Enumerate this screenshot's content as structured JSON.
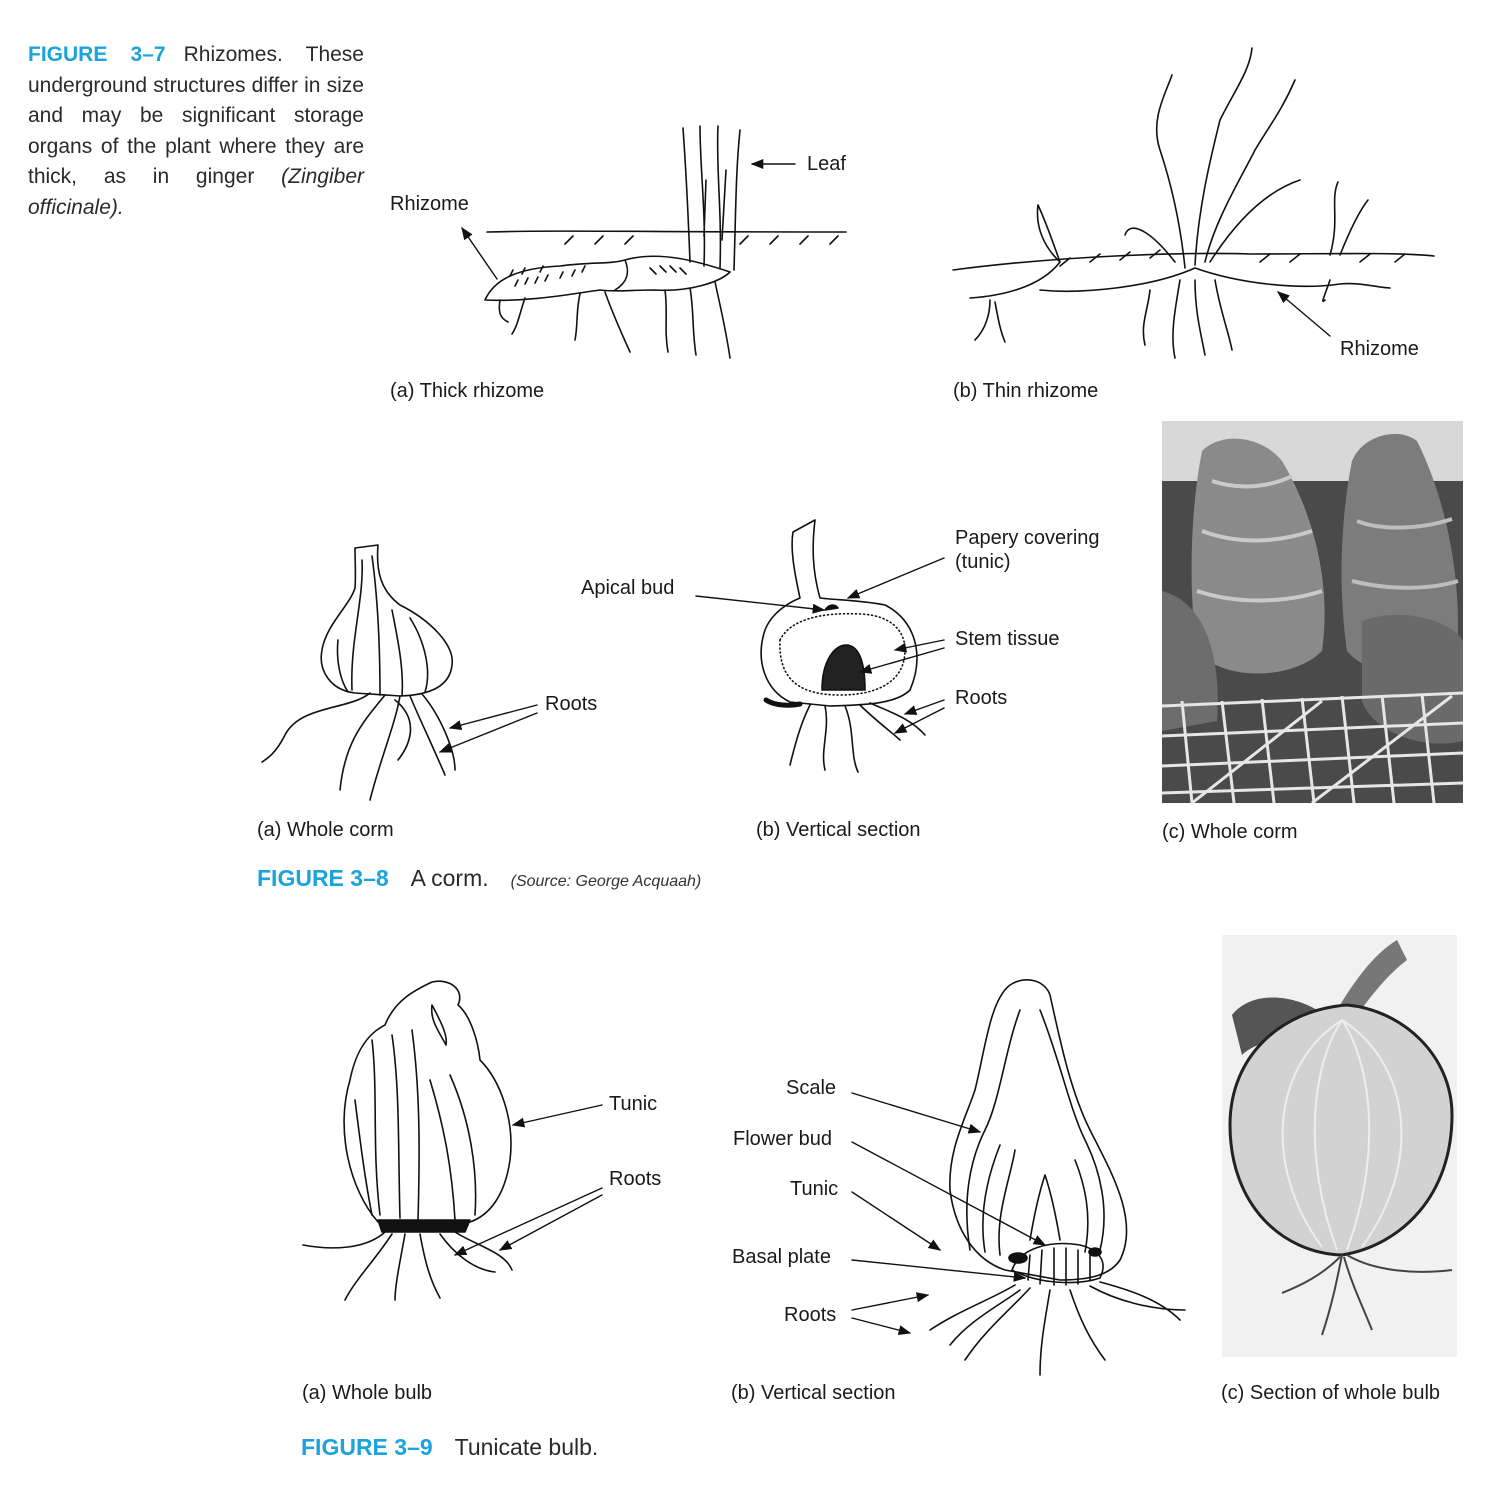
{
  "figure_3_7": {
    "label": "FIGURE 3–7",
    "caption": "Rhizomes. These underground structures differ in size and may be significant storage organs of the plant where they are thick, as in ginger",
    "caption_italic": "(Zingiber officinale).",
    "labels": {
      "leaf": "Leaf",
      "rhizome_a": "Rhizome",
      "rhizome_b": "Rhizome"
    },
    "panels": {
      "a": "(a) Thick rhizome",
      "b": "(b) Thin rhizome"
    }
  },
  "figure_3_8": {
    "label": "FIGURE 3–8",
    "caption": "A corm.",
    "source": "(Source: George Acquaah)",
    "labels": {
      "roots_a": "Roots",
      "papery_covering": "Papery covering",
      "tunic": "(tunic)",
      "apical_bud": "Apical bud",
      "stem_tissue": "Stem tissue",
      "roots_b": "Roots"
    },
    "panels": {
      "a": "(a) Whole corm",
      "b": "(b) Vertical section",
      "c": "(c) Whole corm"
    }
  },
  "figure_3_9": {
    "label": "FIGURE 3–9",
    "caption": "Tunicate bulb.",
    "labels": {
      "tunic_a": "Tunic",
      "roots_a": "Roots",
      "scale": "Scale",
      "flower_bud": "Flower bud",
      "tunic_b": "Tunic",
      "basal_plate": "Basal plate",
      "roots_b": "Roots"
    },
    "panels": {
      "a": "(a) Whole bulb",
      "b": "(b) Vertical section",
      "c": "(c) Section of whole bulb"
    }
  }
}
